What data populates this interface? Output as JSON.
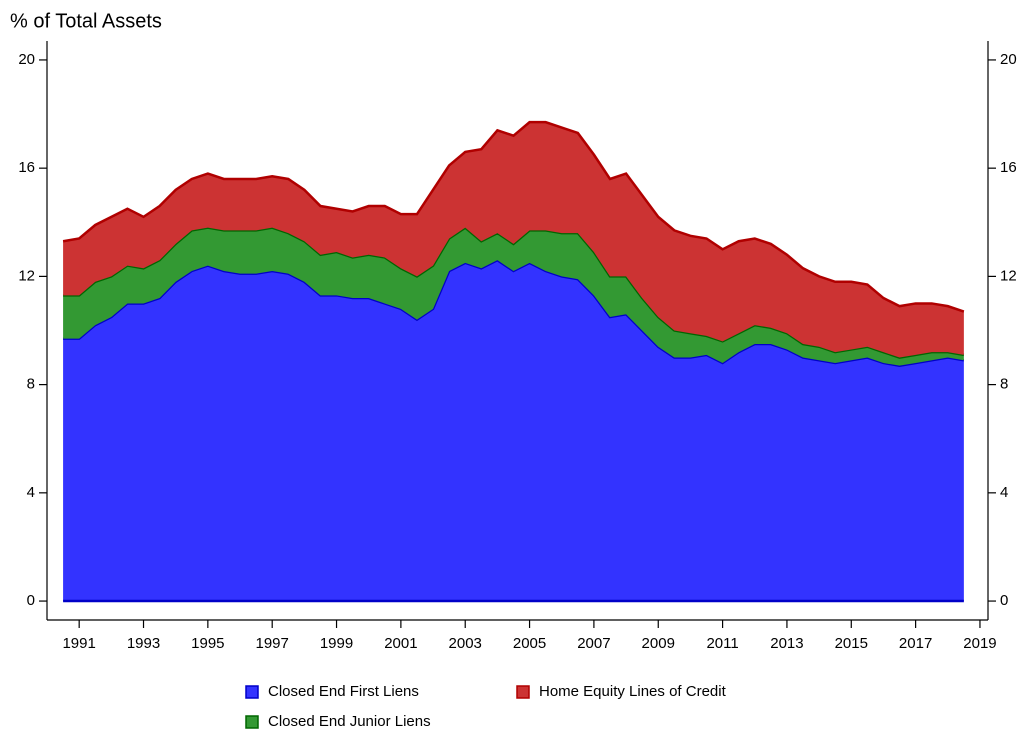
{
  "chart_data": {
    "type": "stacked-area",
    "title": "% of Total Assets",
    "x": [
      1990.5,
      1991,
      1991.5,
      1992,
      1992.5,
      1993,
      1993.5,
      1994,
      1994.5,
      1995,
      1995.5,
      1996,
      1996.5,
      1997,
      1997.5,
      1998,
      1998.5,
      1999,
      1999.5,
      2000,
      2000.5,
      2001,
      2001.5,
      2002,
      2002.5,
      2003,
      2003.5,
      2004,
      2004.5,
      2005,
      2005.5,
      2006,
      2006.5,
      2007,
      2007.5,
      2008,
      2008.5,
      2009,
      2009.5,
      2010,
      2010.5,
      2011,
      2011.5,
      2012,
      2012.5,
      2013,
      2013.5,
      2014,
      2014.5,
      2015,
      2015.5,
      2016,
      2016.5,
      2017,
      2017.5,
      2018,
      2018.5
    ],
    "series": [
      {
        "name": "Closed End First Liens",
        "color": "#3333ff",
        "edge": "#0000c8",
        "values": [
          9.7,
          9.7,
          10.2,
          10.5,
          11.0,
          11.0,
          11.2,
          11.8,
          12.2,
          12.4,
          12.2,
          12.1,
          12.1,
          12.2,
          12.1,
          11.8,
          11.3,
          11.3,
          11.2,
          11.2,
          11.0,
          10.8,
          10.4,
          10.8,
          12.2,
          12.5,
          12.3,
          12.6,
          12.2,
          12.5,
          12.2,
          12.0,
          11.9,
          11.3,
          10.5,
          10.6,
          10.0,
          9.4,
          9.0,
          9.0,
          9.1,
          8.8,
          9.2,
          9.5,
          9.5,
          9.3,
          9.0,
          8.9,
          8.8,
          8.9,
          9.0,
          8.8,
          8.7,
          8.8,
          8.9,
          9.0,
          8.9
        ]
      },
      {
        "name": "Closed End Junior Liens",
        "color": "#339933",
        "edge": "#006600",
        "values": [
          1.6,
          1.6,
          1.6,
          1.5,
          1.4,
          1.3,
          1.4,
          1.4,
          1.5,
          1.4,
          1.5,
          1.6,
          1.6,
          1.6,
          1.5,
          1.5,
          1.5,
          1.6,
          1.5,
          1.6,
          1.7,
          1.5,
          1.6,
          1.6,
          1.2,
          1.3,
          1.0,
          1.0,
          1.0,
          1.2,
          1.5,
          1.6,
          1.7,
          1.6,
          1.5,
          1.4,
          1.2,
          1.1,
          1.0,
          0.9,
          0.7,
          0.8,
          0.7,
          0.7,
          0.6,
          0.6,
          0.5,
          0.5,
          0.4,
          0.4,
          0.4,
          0.4,
          0.3,
          0.3,
          0.3,
          0.2,
          0.2
        ]
      },
      {
        "name": "Home Equity Lines of Credit",
        "color": "#cc3333",
        "edge": "#b00000",
        "values": [
          2.0,
          2.1,
          2.1,
          2.2,
          2.1,
          1.9,
          2.0,
          2.0,
          1.9,
          2.0,
          1.9,
          1.9,
          1.9,
          1.9,
          2.0,
          1.9,
          1.8,
          1.6,
          1.7,
          1.8,
          1.9,
          2.0,
          2.3,
          2.8,
          2.7,
          2.8,
          3.4,
          3.8,
          4.0,
          4.0,
          4.0,
          3.9,
          3.7,
          3.6,
          3.6,
          3.8,
          3.8,
          3.7,
          3.7,
          3.6,
          3.6,
          3.4,
          3.4,
          3.2,
          3.1,
          2.9,
          2.8,
          2.6,
          2.6,
          2.5,
          2.3,
          2.0,
          1.9,
          1.9,
          1.8,
          1.7,
          1.6
        ]
      }
    ],
    "xlim": [
      1990,
      2019.25
    ],
    "xticks": [
      1991,
      1993,
      1995,
      1997,
      1999,
      2001,
      2003,
      2005,
      2007,
      2009,
      2011,
      2013,
      2015,
      2017,
      2019
    ],
    "ylim": [
      -0.7,
      20.7
    ],
    "yticks": [
      0,
      4,
      8,
      12,
      16,
      20
    ],
    "y2lim": [
      -0.7,
      20.7
    ],
    "y2ticks": [
      0,
      4,
      8,
      12,
      16,
      20
    ]
  }
}
